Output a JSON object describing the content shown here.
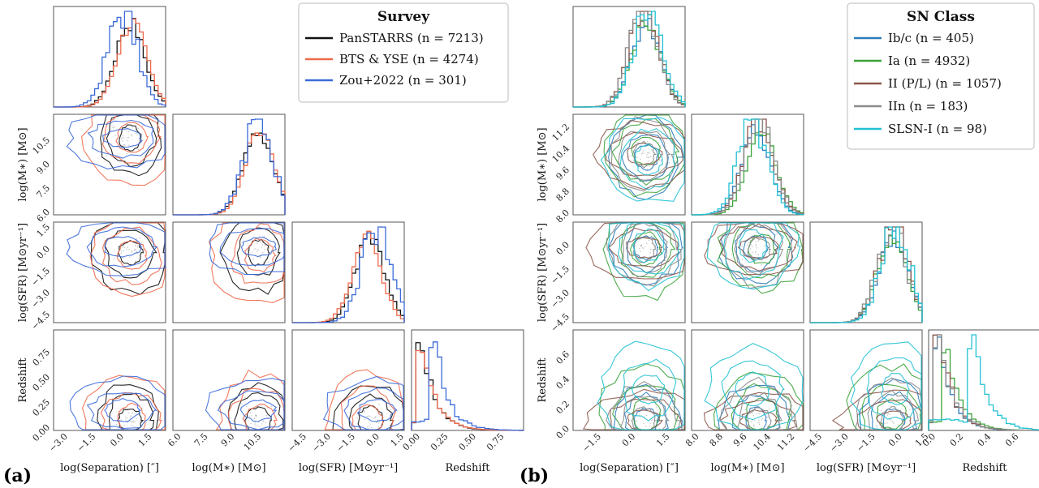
{
  "figure_labels": {
    "a": "(a)",
    "b": "(b)"
  },
  "chart_data": [
    {
      "type": "corner",
      "id": "a",
      "legend_title": "Survey",
      "legend_position": "top-right",
      "series": [
        {
          "name": "PanSTARRS (n = 7213)",
          "color": "#111111"
        },
        {
          "name": "BTS & YSE (n = 4274)",
          "color": "#ef6a4c"
        },
        {
          "name": "Zou+2022 (n = 301)",
          "color": "#3b6ad9"
        }
      ],
      "variables": [
        {
          "key": "sep",
          "label": "log(Separation) [″]",
          "ylabel": "",
          "ticks": [
            "−3.0",
            "−1.5",
            "0.0",
            "1.5"
          ],
          "range": [
            -3.6,
            2.4
          ]
        },
        {
          "key": "mass",
          "label": "log(M∗) [M⊙]",
          "ylabel": "log(M∗) [M⊙]",
          "ticks": [
            "6.0",
            "7.5",
            "9.0",
            "10.5"
          ],
          "range": [
            5.7,
            12.0
          ]
        },
        {
          "key": "sfr",
          "label": "log(SFR) [M⊙yr⁻¹]",
          "ylabel": "log(SFR) [M⊙yr⁻¹]",
          "ticks": [
            "−4.5",
            "−3.0",
            "−1.5",
            "0.0",
            "1.5"
          ],
          "range": [
            -5.2,
            1.7
          ]
        },
        {
          "key": "z",
          "label": "Redshift",
          "ylabel": "Redshift",
          "ticks": [
            "0.00",
            "0.25",
            "0.50",
            "0.75"
          ],
          "range": [
            -0.05,
            0.95
          ]
        }
      ],
      "marginal_peaks": {
        "sep": [
          0.5,
          0.6,
          0.1
        ],
        "mass": [
          10.5,
          10.6,
          10.5
        ],
        "sfr": [
          -0.4,
          -0.6,
          0.0
        ],
        "z": [
          0.05,
          0.05,
          0.15
        ]
      }
    },
    {
      "type": "corner",
      "id": "b",
      "legend_title": "SN Class",
      "legend_position": "top-right",
      "series": [
        {
          "name": "Ib/c (n = 405)",
          "color": "#2b7bba"
        },
        {
          "name": "Ia (n = 4932)",
          "color": "#3ca33c"
        },
        {
          "name": "II (P/L) (n = 1057)",
          "color": "#8c564b"
        },
        {
          "name": "IIn (n = 183)",
          "color": "#8a8a8a"
        },
        {
          "name": "SLSN-I (n = 98)",
          "color": "#22c1d3"
        }
      ],
      "variables": [
        {
          "key": "sep",
          "label": "log(Separation) [″]",
          "ylabel": "",
          "ticks": [
            "−1.5",
            "0.0",
            "1.5"
          ],
          "range": [
            -2.6,
            2.3
          ]
        },
        {
          "key": "mass",
          "label": "log(M∗) [M⊙]",
          "ylabel": "log(M∗) [M⊙]",
          "ticks": [
            "8.0",
            "8.8",
            "9.6",
            "10.4",
            "11.2"
          ],
          "range": [
            7.85,
            11.6
          ]
        },
        {
          "key": "sfr",
          "label": "log(SFR) [M⊙yr⁻¹]",
          "ylabel": "log(SFR) [M⊙yr⁻¹]",
          "ticks": [
            "−4.5",
            "−3.0",
            "−1.5",
            "0.0",
            "1.5"
          ],
          "range": [
            -5.0,
            1.3
          ]
        },
        {
          "key": "z",
          "label": "Redshift",
          "ylabel": "Redshift",
          "ticks": [
            "0.0",
            "0.2",
            "0.4",
            "0.6"
          ],
          "range": [
            -0.03,
            0.78
          ]
        }
      ],
      "mass_ylabel_ticks": [
        "8.0",
        "8.8",
        "9.6",
        "10.4",
        "11.2"
      ],
      "marginal_peaks": {
        "sep": [
          0.6,
          0.6,
          0.5,
          0.5,
          0.7
        ],
        "mass": [
          10.0,
          10.2,
          10.1,
          10.1,
          9.9
        ],
        "sfr": [
          -0.3,
          -0.4,
          -0.3,
          -0.4,
          -0.2
        ],
        "z": [
          0.05,
          0.1,
          0.05,
          0.05,
          0.3
        ]
      }
    }
  ]
}
